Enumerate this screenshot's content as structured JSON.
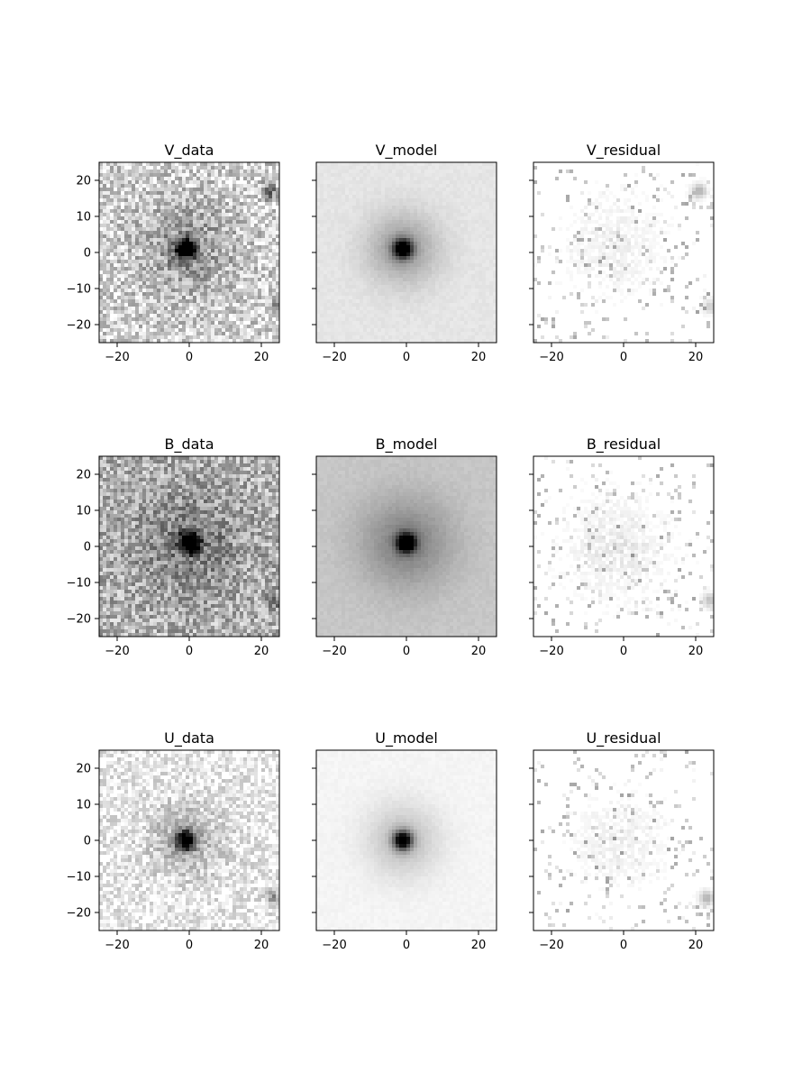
{
  "chart_data": [
    {
      "type": "heatmap",
      "title": "V_data",
      "kind": "data",
      "band": "V",
      "xlim": [
        -25,
        25
      ],
      "ylim": [
        -25,
        25
      ],
      "xticks": [
        -20,
        0,
        20
      ],
      "yticks": [
        -20,
        -10,
        0,
        10,
        20
      ],
      "ytick_labels_shown": true,
      "colormap": "Greys",
      "peak": [
        -1,
        1
      ],
      "background_level": 0.18,
      "noise_level": 0.22,
      "core_width": 2.0,
      "halo_width": 9.0,
      "halo_strength": 0.25,
      "hotspots": [
        [
          22,
          17,
          0.5
        ],
        [
          24,
          -15,
          0.3
        ]
      ]
    },
    {
      "type": "heatmap",
      "title": "V_model",
      "kind": "model",
      "band": "V",
      "xlim": [
        -25,
        25
      ],
      "ylim": [
        -25,
        25
      ],
      "xticks": [
        -20,
        0,
        20
      ],
      "yticks": [
        -20,
        -10,
        0,
        10,
        20
      ],
      "ytick_labels_shown": false,
      "colormap": "Greys",
      "peak": [
        -1,
        1
      ],
      "background_level": 0.1,
      "noise_level": 0.02,
      "core_width": 1.8,
      "halo_width": 7.0,
      "halo_strength": 0.3,
      "hotspots": []
    },
    {
      "type": "heatmap",
      "title": "V_residual",
      "kind": "residual",
      "band": "V",
      "xlim": [
        -25,
        25
      ],
      "ylim": [
        -25,
        25
      ],
      "xticks": [
        -20,
        0,
        20
      ],
      "yticks": [
        -20,
        -10,
        0,
        10,
        20
      ],
      "ytick_labels_shown": false,
      "colormap": "Greys",
      "peak": [
        -2,
        2
      ],
      "background_level": 0.0,
      "noise_level": 0.12,
      "core_width": 4.0,
      "halo_width": 8.0,
      "halo_strength": 0.05,
      "hotspots": [
        [
          21,
          17,
          0.3
        ],
        [
          24,
          -15,
          0.2
        ]
      ]
    },
    {
      "type": "heatmap",
      "title": "B_data",
      "kind": "data",
      "band": "B",
      "xlim": [
        -25,
        25
      ],
      "ylim": [
        -25,
        25
      ],
      "xticks": [
        -20,
        0,
        20
      ],
      "yticks": [
        -20,
        -10,
        0,
        10,
        20
      ],
      "ytick_labels_shown": true,
      "colormap": "Greys",
      "peak": [
        0,
        1
      ],
      "background_level": 0.3,
      "noise_level": 0.22,
      "core_width": 2.0,
      "halo_width": 10.0,
      "halo_strength": 0.22,
      "hotspots": [
        [
          24,
          -15,
          0.3
        ]
      ]
    },
    {
      "type": "heatmap",
      "title": "B_model",
      "kind": "model",
      "band": "B",
      "xlim": [
        -25,
        25
      ],
      "ylim": [
        -25,
        25
      ],
      "xticks": [
        -20,
        0,
        20
      ],
      "yticks": [
        -20,
        -10,
        0,
        10,
        20
      ],
      "ytick_labels_shown": false,
      "colormap": "Greys",
      "peak": [
        0,
        1
      ],
      "background_level": 0.22,
      "noise_level": 0.02,
      "core_width": 1.8,
      "halo_width": 9.0,
      "halo_strength": 0.28,
      "hotspots": []
    },
    {
      "type": "heatmap",
      "title": "B_residual",
      "kind": "residual",
      "band": "B",
      "xlim": [
        -25,
        25
      ],
      "ylim": [
        -25,
        25
      ],
      "xticks": [
        -20,
        0,
        20
      ],
      "yticks": [
        -20,
        -10,
        0,
        10,
        20
      ],
      "ytick_labels_shown": false,
      "colormap": "Greys",
      "peak": [
        -2,
        0
      ],
      "background_level": 0.0,
      "noise_level": 0.13,
      "core_width": 4.0,
      "halo_width": 8.0,
      "halo_strength": 0.07,
      "hotspots": [
        [
          24,
          -15,
          0.25
        ]
      ]
    },
    {
      "type": "heatmap",
      "title": "U_data",
      "kind": "data",
      "band": "U",
      "xlim": [
        -25,
        25
      ],
      "ylim": [
        -25,
        25
      ],
      "xticks": [
        -20,
        0,
        20
      ],
      "yticks": [
        -20,
        -10,
        0,
        10,
        20
      ],
      "ytick_labels_shown": true,
      "colormap": "Greys",
      "peak": [
        -1,
        0
      ],
      "background_level": 0.08,
      "noise_level": 0.16,
      "core_width": 2.0,
      "halo_width": 8.0,
      "halo_strength": 0.2,
      "hotspots": [
        [
          23,
          -16,
          0.35
        ]
      ]
    },
    {
      "type": "heatmap",
      "title": "U_model",
      "kind": "model",
      "band": "U",
      "xlim": [
        -25,
        25
      ],
      "ylim": [
        -25,
        25
      ],
      "xticks": [
        -20,
        0,
        20
      ],
      "yticks": [
        -20,
        -10,
        0,
        10,
        20
      ],
      "ytick_labels_shown": false,
      "colormap": "Greys",
      "peak": [
        -1,
        0
      ],
      "background_level": 0.04,
      "noise_level": 0.015,
      "core_width": 1.8,
      "halo_width": 7.0,
      "halo_strength": 0.22,
      "hotspots": []
    },
    {
      "type": "heatmap",
      "title": "U_residual",
      "kind": "residual",
      "band": "U",
      "xlim": [
        -25,
        25
      ],
      "ylim": [
        -25,
        25
      ],
      "xticks": [
        -20,
        0,
        20
      ],
      "yticks": [
        -20,
        -10,
        0,
        10,
        20
      ],
      "ytick_labels_shown": false,
      "colormap": "Greys",
      "peak": [
        -1,
        0
      ],
      "background_level": 0.0,
      "noise_level": 0.09,
      "core_width": 4.0,
      "halo_width": 8.0,
      "halo_strength": 0.05,
      "hotspots": [
        [
          23,
          -16,
          0.3
        ]
      ]
    }
  ]
}
